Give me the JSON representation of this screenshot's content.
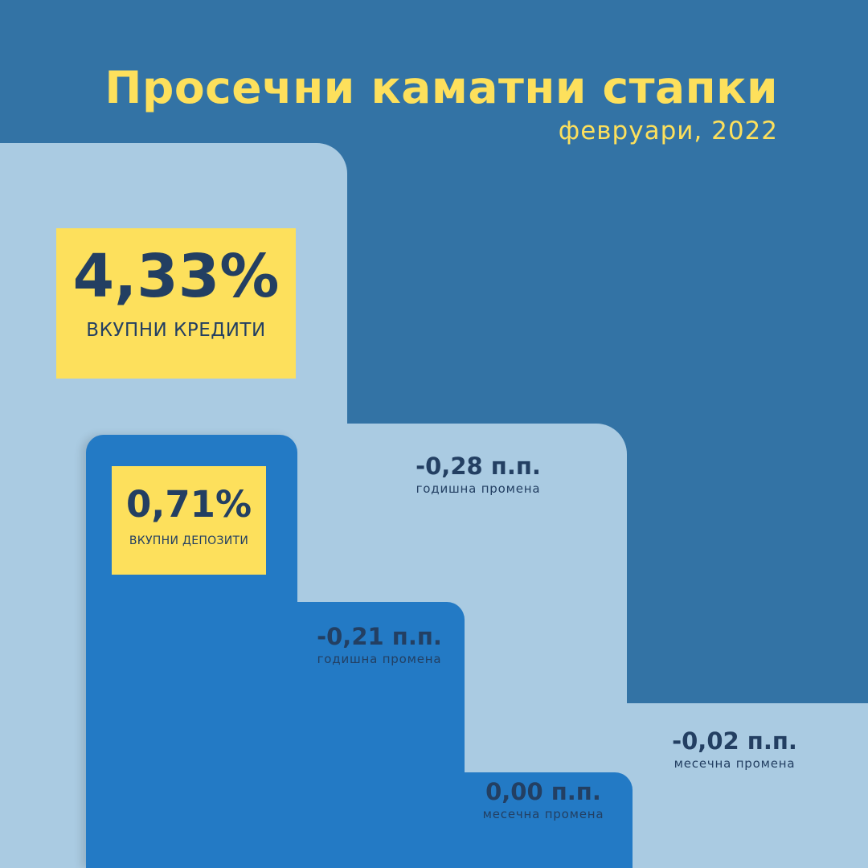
{
  "header": {
    "title": "Просечни каматни стапки",
    "subtitle": "февруари, 2022"
  },
  "loans": {
    "value": "4,33%",
    "label": "ВКУПНИ КРЕДИТИ",
    "annual_change": {
      "value": "-0,28 п.п.",
      "label": "годишна промена"
    },
    "monthly_change": {
      "value": "-0,02 п.п.",
      "label": "месечна промена"
    }
  },
  "deposits": {
    "value": "0,71%",
    "label": "ВКУПНИ ДЕПОЗИТИ",
    "annual_change": {
      "value": "-0,21 п.п.",
      "label": "годишна промена"
    },
    "monthly_change": {
      "value": "0,00 п.п.",
      "label": "месечна промена"
    }
  },
  "colors": {
    "background": "#3373a5",
    "light_step": "#aacbe2",
    "deposit_step": "#237ac5",
    "accent_yellow": "#fde05c",
    "text_dark": "#233f62"
  }
}
